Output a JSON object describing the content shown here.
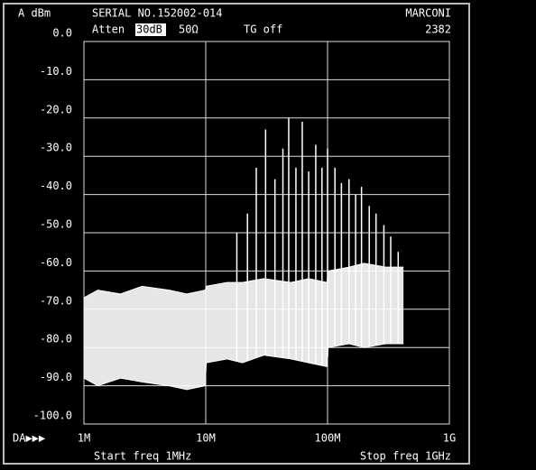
{
  "chart_data": {
    "type": "spectrum",
    "title": "SERIAL NO.152002-014",
    "brand": "MARCONI",
    "model": "2382",
    "y_label": "A dBm",
    "atten_label": "Atten",
    "atten": "30dB",
    "impedance": "50Ω",
    "tg": "TG off",
    "mode": "DA▶▶▶",
    "start": "Start freq 1MHz",
    "stop": "Stop freq 1GHz",
    "x_log": true,
    "grid": true,
    "color": "#ffffff",
    "xlim": [
      1,
      1000
    ],
    "ylim": [
      -100,
      0
    ],
    "xticks": [
      {
        "value": 1,
        "label": "1M"
      },
      {
        "value": 10,
        "label": "10M"
      },
      {
        "value": 100,
        "label": "100M"
      },
      {
        "value": 1000,
        "label": "1G"
      }
    ],
    "yticks": [
      {
        "value": 0,
        "label": "0.0"
      },
      {
        "value": -10,
        "label": "-10.0"
      },
      {
        "value": -20,
        "label": "-20.0"
      },
      {
        "value": -30,
        "label": "-30.0"
      },
      {
        "value": -40,
        "label": "-40.0"
      },
      {
        "value": -50,
        "label": "-50.0"
      },
      {
        "value": -60,
        "label": "-60.0"
      },
      {
        "value": -70,
        "label": "-70.0"
      },
      {
        "value": -80,
        "label": "-80.0"
      },
      {
        "value": -90,
        "label": "-90.0"
      },
      {
        "value": -100,
        "label": "-100.0"
      }
    ],
    "x": [
      1,
      1.3,
      2,
      3,
      5,
      7,
      9.9,
      10.1,
      15,
      20,
      30,
      50,
      70,
      99,
      101,
      150,
      200,
      300,
      420
    ],
    "series": [
      {
        "values": [
          -67,
          -65,
          -66,
          -64,
          -65,
          -66,
          -65,
          -64,
          -63,
          -63,
          -62,
          -63,
          -62,
          -63,
          -60,
          -59,
          -58,
          -59,
          -59
        ]
      },
      {
        "values": [
          -88,
          -90,
          -88,
          -89,
          -90,
          -91,
          -90,
          -84,
          -83,
          -84,
          -82,
          -83,
          -84,
          -85,
          -80,
          -79,
          -80,
          -79,
          -79
        ]
      }
    ],
    "spikes": {
      "x": [
        18,
        22,
        26,
        31,
        37,
        43,
        48,
        55,
        62,
        70,
        80,
        90,
        100,
        115,
        130,
        150,
        170,
        190,
        220,
        250,
        290,
        330,
        380
      ],
      "values": [
        -50,
        -45,
        -33,
        -23,
        -36,
        -28,
        -20,
        -33,
        -21,
        -34,
        -27,
        -33,
        -28,
        -33,
        -37,
        -36,
        -40,
        -38,
        -43,
        -45,
        -48,
        -51,
        -55
      ]
    }
  }
}
